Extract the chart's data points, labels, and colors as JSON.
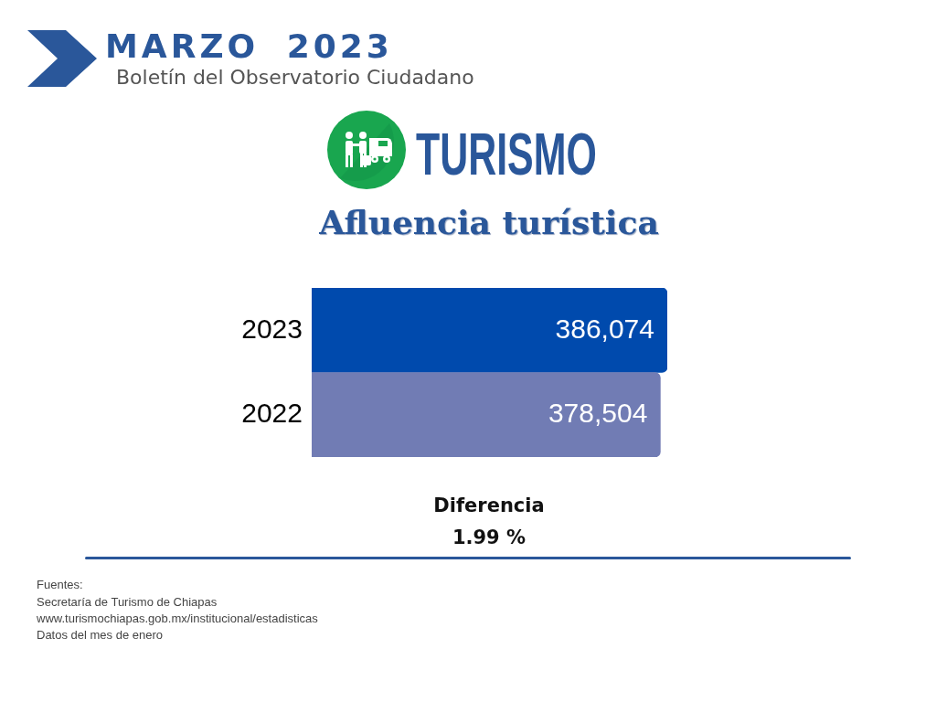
{
  "chart_data": {
    "type": "bar",
    "orientation": "horizontal",
    "title": "Afluencia turística",
    "categories": [
      "2023",
      "2022"
    ],
    "values": [
      386074,
      378504
    ],
    "value_labels": [
      "386,074",
      "378,504"
    ],
    "colors": [
      "#004aad",
      "#717cb4"
    ],
    "tick_labels": "y",
    "grid": false,
    "legend": false,
    "annotations": [
      "MARZO 2023",
      "Boletín del Observatorio Ciudadano",
      "TURISMO",
      "Diferencia",
      "1.99 %",
      "Fuentes:",
      "Secretaría de Turismo de Chiapas",
      "www.turismochiapas.gob.mx/institucional/estadisticas",
      "Datos del mes de enero"
    ]
  }
}
